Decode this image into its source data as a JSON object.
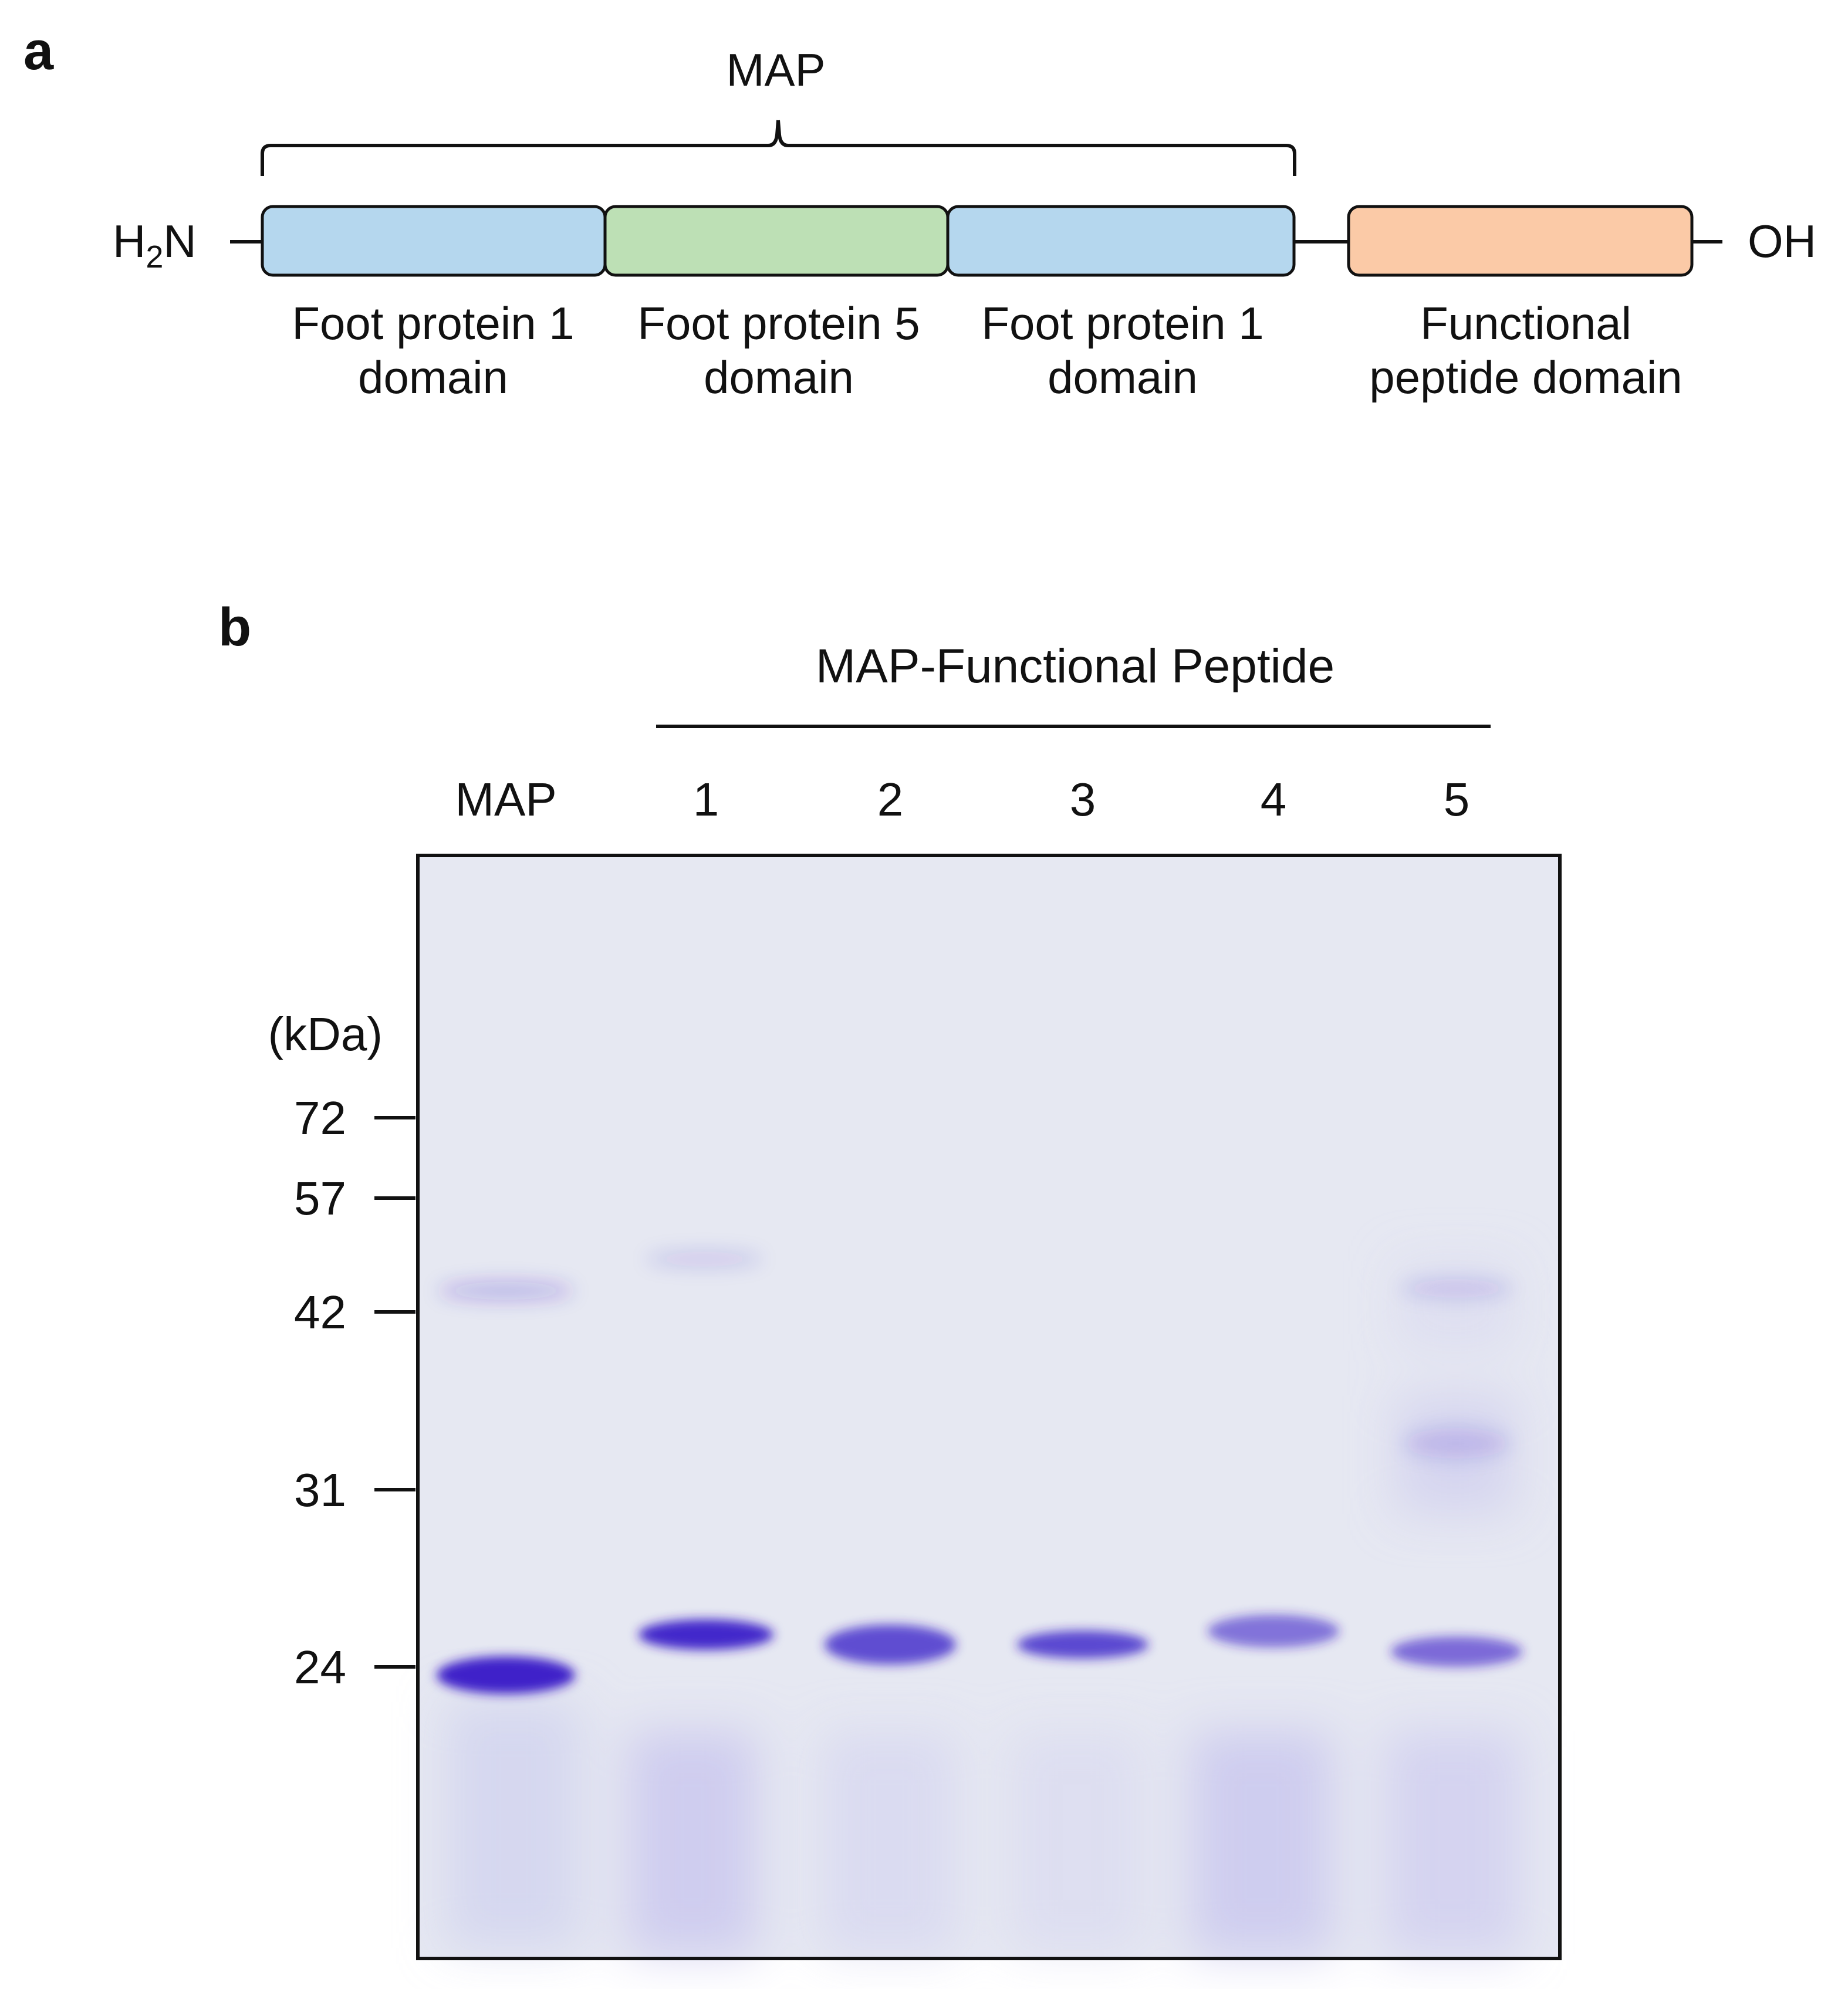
{
  "panel_a": {
    "label": "a",
    "bracket_label": "MAP",
    "n_terminus": {
      "main": "H",
      "sub": "2",
      "tail": "N"
    },
    "c_terminus": "OH",
    "domains": [
      {
        "line1": "Foot protein 1",
        "line2": "domain",
        "color": "#b5d7ee"
      },
      {
        "line1": "Foot protein 5",
        "line2": "domain",
        "color": "#bde0b5"
      },
      {
        "line1": "Foot protein 1",
        "line2": "domain",
        "color": "#b5d7ee"
      },
      {
        "line1": "Functional",
        "line2": "peptide domain",
        "color": "#fbcaa7"
      }
    ]
  },
  "panel_b": {
    "label": "b",
    "group_label": "MAP-Functional Peptide",
    "lane_labels": [
      "MAP",
      "1",
      "2",
      "3",
      "4",
      "5"
    ],
    "unit_label": "(kDa)",
    "markers": [
      "72",
      "57",
      "42",
      "31",
      "24"
    ],
    "gel_colors": {
      "background": "#e6e8f2",
      "band": "#3a1fc8"
    }
  }
}
